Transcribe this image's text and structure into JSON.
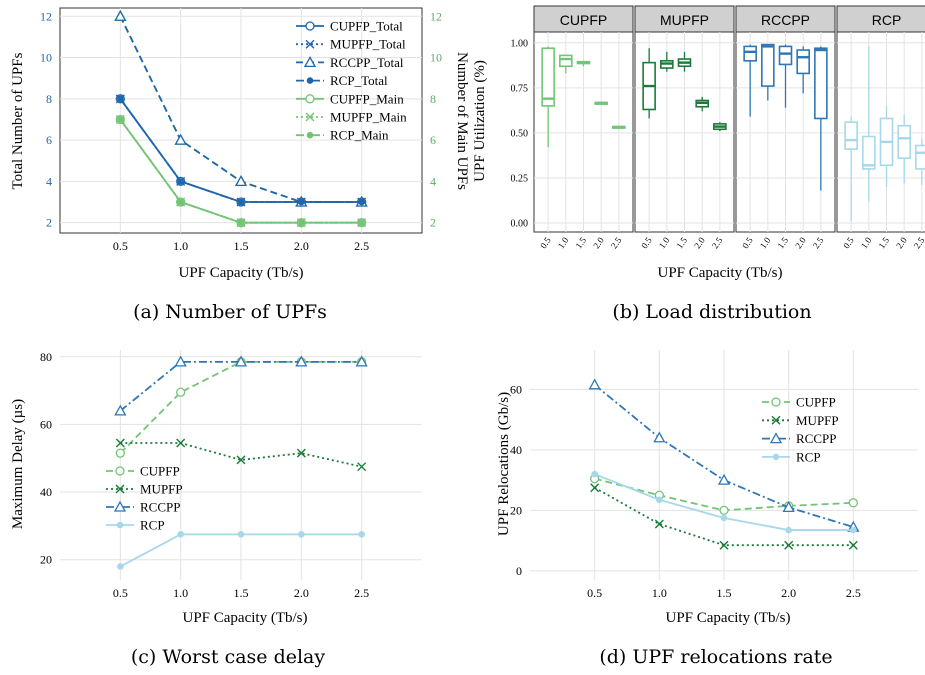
{
  "colors": {
    "CUPFP": "#74c476",
    "MUPFP": "#1a7a3a",
    "RCCPP": "#2f77b4",
    "RCP": "#a6d8ea",
    "total_blue": "#2166ac",
    "main_green": "#74c476",
    "axis_green": "#5aae61",
    "axis_blue": "#2166ac",
    "grid": "#e3e3e3",
    "strip_bg": "#d0d0d0"
  },
  "chart_data": [
    {
      "id": "a",
      "type": "line",
      "caption": "(a) Number of UPFs",
      "xlabel": "UPF Capacity (Tb/s)",
      "ylabel": "Total Number of UPFs",
      "ylabel2": "Number of Main UPFs",
      "x": [
        0.5,
        1.0,
        1.5,
        2.0,
        2.5
      ],
      "x_ticks": [
        "0.5",
        "1.0",
        "1.5",
        "2.0",
        "2.5"
      ],
      "xlim": [
        0,
        3
      ],
      "ylim": [
        1.5,
        12.4
      ],
      "y_ticks": [
        2,
        4,
        6,
        8,
        10,
        12
      ],
      "y2_ticks": [
        2,
        4,
        6,
        8,
        10,
        12
      ],
      "legend_position": "top-right",
      "series": [
        {
          "name": "CUPFP_Total",
          "values": [
            8,
            4,
            3,
            3,
            3
          ],
          "color": "#2166ac",
          "dash": "solid",
          "marker": "circle"
        },
        {
          "name": "MUPFP_Total",
          "values": [
            8,
            4,
            3,
            3,
            3
          ],
          "color": "#2166ac",
          "dash": "dotted",
          "marker": "x"
        },
        {
          "name": "RCCPP_Total",
          "values": [
            12,
            6,
            4,
            3,
            3
          ],
          "color": "#2166ac",
          "dash": "dashed",
          "marker": "triangle"
        },
        {
          "name": "RCP_Total",
          "values": [
            8,
            4,
            3,
            3,
            3
          ],
          "color": "#2166ac",
          "dash": "dashdot",
          "marker": "dot"
        },
        {
          "name": "CUPFP_Main",
          "values": [
            7,
            3,
            2,
            2,
            2
          ],
          "color": "#74c476",
          "dash": "solid",
          "marker": "circle"
        },
        {
          "name": "MUPFP_Main",
          "values": [
            7,
            3,
            2,
            2,
            2
          ],
          "color": "#74c476",
          "dash": "dotted",
          "marker": "x"
        },
        {
          "name": "RCP_Main",
          "values": [
            7,
            3,
            2,
            2,
            2
          ],
          "color": "#74c476",
          "dash": "dashdot",
          "marker": "dot"
        }
      ],
      "extra_series": [
        {
          "name": "",
          "values": [
            12,
            6,
            4,
            3,
            3
          ],
          "color": "#74c476",
          "dash": "dashed",
          "marker": "triangle"
        }
      ]
    },
    {
      "id": "b",
      "type": "box",
      "caption": "(b) Load distribution",
      "xlabel": "UPF Capacity (Tb/s)",
      "ylabel": "UPF Utilization (%)",
      "ylim": [
        -0.05,
        1.06
      ],
      "y_ticks": [
        "0.00",
        "0.25",
        "0.50",
        "0.75",
        "1.00"
      ],
      "y_tick_values": [
        0,
        0.25,
        0.5,
        0.75,
        1.0
      ],
      "x_ticks": [
        "0.5",
        "1.0",
        "1.5",
        "2.0",
        "2.5"
      ],
      "panels": [
        {
          "name": "CUPFP",
          "color": "#74c476",
          "boxes": [
            {
              "min": 0.42,
              "q1": 0.65,
              "median": 0.69,
              "q3": 0.97,
              "max": 0.98
            },
            {
              "min": 0.83,
              "q1": 0.87,
              "median": 0.91,
              "q3": 0.93,
              "max": 0.93
            },
            {
              "min": 0.87,
              "q1": 0.885,
              "median": 0.89,
              "q3": 0.895,
              "max": 0.9
            },
            {
              "min": 0.665,
              "q1": 0.665,
              "median": 0.667,
              "q3": 0.668,
              "max": 0.668
            },
            {
              "min": 0.53,
              "q1": 0.53,
              "median": 0.533,
              "q3": 0.535,
              "max": 0.535
            }
          ]
        },
        {
          "name": "MUPFP",
          "color": "#1a7a3a",
          "boxes": [
            {
              "min": 0.58,
              "q1": 0.63,
              "median": 0.76,
              "q3": 0.89,
              "max": 0.97
            },
            {
              "min": 0.84,
              "q1": 0.86,
              "median": 0.885,
              "q3": 0.9,
              "max": 0.95
            },
            {
              "min": 0.84,
              "q1": 0.87,
              "median": 0.89,
              "q3": 0.91,
              "max": 0.95
            },
            {
              "min": 0.62,
              "q1": 0.645,
              "median": 0.667,
              "q3": 0.68,
              "max": 0.7
            },
            {
              "min": 0.51,
              "q1": 0.52,
              "median": 0.535,
              "q3": 0.55,
              "max": 0.56
            }
          ]
        },
        {
          "name": "RCCPP",
          "color": "#2f77b4",
          "boxes": [
            {
              "min": 0.59,
              "q1": 0.9,
              "median": 0.95,
              "q3": 0.98,
              "max": 0.99
            },
            {
              "min": 0.68,
              "q1": 0.76,
              "median": 0.98,
              "q3": 0.99,
              "max": 0.99
            },
            {
              "min": 0.64,
              "q1": 0.88,
              "median": 0.94,
              "q3": 0.98,
              "max": 0.99
            },
            {
              "min": 0.72,
              "q1": 0.83,
              "median": 0.92,
              "q3": 0.96,
              "max": 0.98
            },
            {
              "min": 0.18,
              "q1": 0.58,
              "median": 0.96,
              "q3": 0.97,
              "max": 0.98
            }
          ]
        },
        {
          "name": "RCP",
          "color": "#a6d8ea",
          "boxes": [
            {
              "min": 0.01,
              "q1": 0.41,
              "median": 0.46,
              "q3": 0.56,
              "max": 0.59
            },
            {
              "min": 0.12,
              "q1": 0.3,
              "median": 0.32,
              "q3": 0.48,
              "max": 0.98
            },
            {
              "min": 0.2,
              "q1": 0.32,
              "median": 0.45,
              "q3": 0.58,
              "max": 0.65
            },
            {
              "min": 0.22,
              "q1": 0.36,
              "median": 0.47,
              "q3": 0.54,
              "max": 0.6
            },
            {
              "min": 0.21,
              "q1": 0.3,
              "median": 0.39,
              "q3": 0.43,
              "max": 0.47
            }
          ]
        }
      ]
    },
    {
      "id": "c",
      "type": "line",
      "caption": "(c) Worst case delay",
      "xlabel": "UPF Capacity (Tb/s)",
      "ylabel": "Maximum Delay (µs)",
      "x": [
        0.5,
        1.0,
        1.5,
        2.0,
        2.5
      ],
      "x_ticks": [
        "0.5",
        "1.0",
        "1.5",
        "2.0",
        "2.5"
      ],
      "xlim": [
        0,
        3
      ],
      "ylim": [
        14,
        82
      ],
      "y_ticks": [
        20,
        40,
        60,
        80
      ],
      "legend_position": "center-left",
      "series": [
        {
          "name": "CUPFP",
          "values": [
            51.5,
            69.5,
            78.5,
            78.5,
            78.5
          ],
          "color": "#74c476",
          "dash": "dashed",
          "marker": "circle"
        },
        {
          "name": "MUPFP",
          "values": [
            54.5,
            54.5,
            49.5,
            51.5,
            47.5
          ],
          "color": "#1a7a3a",
          "dash": "dotted",
          "marker": "x"
        },
        {
          "name": "RCCPP",
          "values": [
            64.0,
            78.5,
            78.5,
            78.5,
            78.5
          ],
          "color": "#2f77b4",
          "dash": "dashdot",
          "marker": "triangle"
        },
        {
          "name": "RCP",
          "values": [
            18.0,
            27.5,
            27.5,
            27.5,
            27.5
          ],
          "color": "#a6d8ea",
          "dash": "solid",
          "marker": "dot"
        }
      ]
    },
    {
      "id": "d",
      "type": "line",
      "caption": "(d) UPF relocations rate",
      "xlabel": "UPF Capacity (Tb/s)",
      "ylabel": "UPF Relocations (Gb/s)",
      "x": [
        0.5,
        1.0,
        1.5,
        2.0,
        2.5
      ],
      "x_ticks": [
        "0.5",
        "1.0",
        "1.5",
        "2.0",
        "2.5"
      ],
      "xlim": [
        0,
        3
      ],
      "ylim": [
        -3,
        73
      ],
      "y_ticks": [
        0,
        20,
        40,
        60
      ],
      "legend_position": "top-right",
      "series": [
        {
          "name": "CUPFP",
          "values": [
            30.5,
            25.0,
            20.0,
            21.5,
            22.5
          ],
          "color": "#74c476",
          "dash": "dashed",
          "marker": "circle"
        },
        {
          "name": "MUPFP",
          "values": [
            27.5,
            15.5,
            8.5,
            8.5,
            8.5
          ],
          "color": "#1a7a3a",
          "dash": "dotted",
          "marker": "x"
        },
        {
          "name": "RCCPP",
          "values": [
            61.5,
            44.0,
            30.0,
            21.0,
            14.5
          ],
          "color": "#2f77b4",
          "dash": "dashdot",
          "marker": "triangle"
        },
        {
          "name": "RCP",
          "values": [
            32.0,
            23.5,
            17.5,
            13.5,
            13.5
          ],
          "color": "#a6d8ea",
          "dash": "solid",
          "marker": "dot"
        }
      ]
    }
  ]
}
